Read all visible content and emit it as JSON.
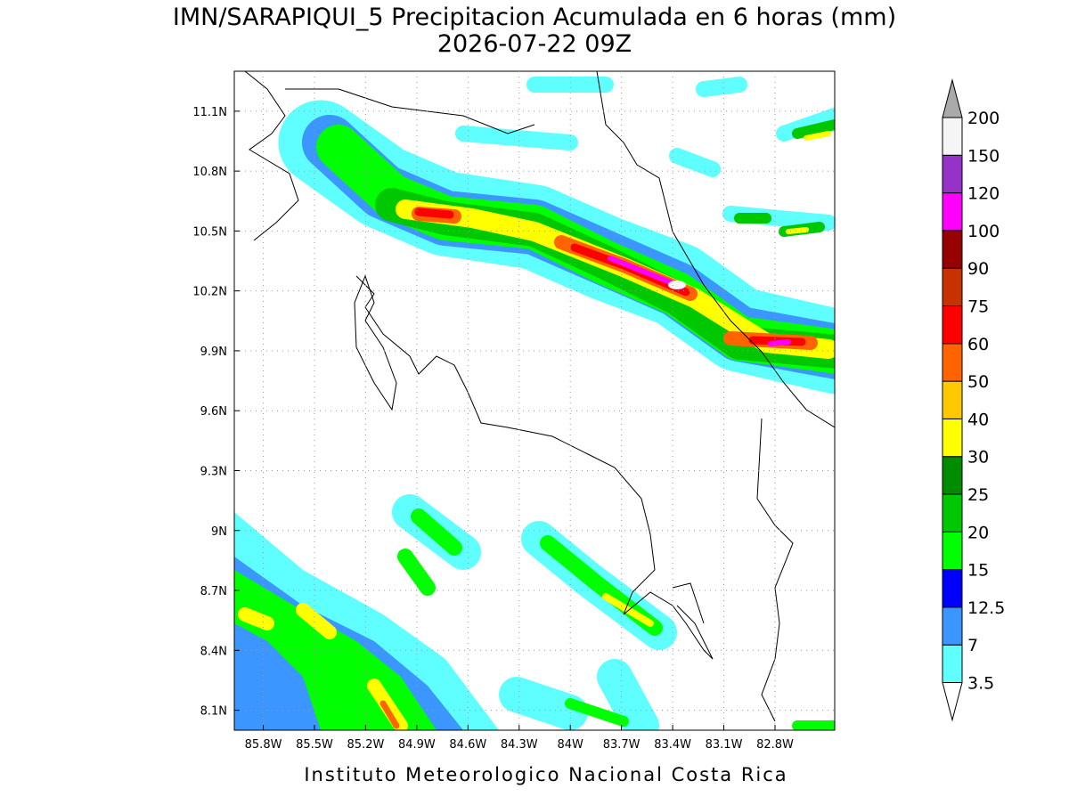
{
  "title": "IMN/SARAPIQUI_5 Precipitacion Acumulada en 6 horas (mm)",
  "subtitle": "2026-07-22 09Z",
  "footer": "Instituto Meteorologico Nacional Costa Rica",
  "map": {
    "xlim": [
      -85.97,
      -82.45
    ],
    "ylim": [
      8.0,
      11.3
    ],
    "xticks": [
      {
        "value": -85.8,
        "label": "85.8W"
      },
      {
        "value": -85.5,
        "label": "85.5W"
      },
      {
        "value": -85.2,
        "label": "85.2W"
      },
      {
        "value": -84.9,
        "label": "84.9W"
      },
      {
        "value": -84.6,
        "label": "84.6W"
      },
      {
        "value": -84.3,
        "label": "84.3W"
      },
      {
        "value": -84.0,
        "label": "84W"
      },
      {
        "value": -83.7,
        "label": "83.7W"
      },
      {
        "value": -83.4,
        "label": "83.4W"
      },
      {
        "value": -83.1,
        "label": "83.1W"
      },
      {
        "value": -82.8,
        "label": "82.8W"
      }
    ],
    "yticks": [
      {
        "value": 8.1,
        "label": "8.1N"
      },
      {
        "value": 8.4,
        "label": "8.4N"
      },
      {
        "value": 8.7,
        "label": "8.7N"
      },
      {
        "value": 9.0,
        "label": "9N"
      },
      {
        "value": 9.3,
        "label": "9.3N"
      },
      {
        "value": 9.6,
        "label": "9.6N"
      },
      {
        "value": 9.9,
        "label": "9.9N"
      },
      {
        "value": 10.2,
        "label": "10.2N"
      },
      {
        "value": 10.5,
        "label": "10.5N"
      },
      {
        "value": 10.8,
        "label": "10.8N"
      },
      {
        "value": 11.1,
        "label": "11.1N"
      }
    ],
    "grid": true
  },
  "colorbar": {
    "levels": [
      3.5,
      7,
      12.5,
      15,
      20,
      25,
      30,
      40,
      50,
      60,
      75,
      90,
      100,
      120,
      150,
      200
    ],
    "colors": [
      "#60ffff",
      "#3c96ff",
      "#0000ff",
      "#00ff00",
      "#00c800",
      "#008c00",
      "#ffff00",
      "#ffc800",
      "#ff6400",
      "#ff0000",
      "#c83200",
      "#960000",
      "#ff00ff",
      "#9632c8",
      "#f5f5f5"
    ],
    "under_color": "#ffffff",
    "over_color": "#aaaaaa"
  }
}
